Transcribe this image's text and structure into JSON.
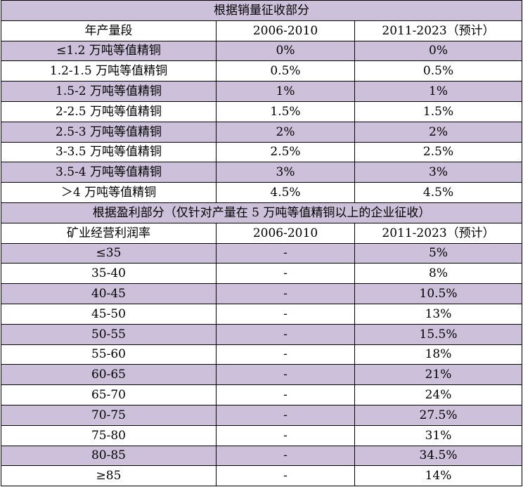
{
  "sales_section": {
    "title": "根据销量征收部分",
    "headers": [
      "年产量段",
      "2006-2010",
      "2011-2023（预计）"
    ],
    "rows": [
      [
        "≤1.2 万吨等值精铜",
        "0%",
        "0%"
      ],
      [
        "1.2-1.5 万吨等值精铜",
        "0.5%",
        "0.5%"
      ],
      [
        "1.5-2 万吨等值精铜",
        "1%",
        "1%"
      ],
      [
        "2-2.5 万吨等值精铜",
        "1.5%",
        "1.5%"
      ],
      [
        "2.5-3 万吨等值精铜",
        "2%",
        "2%"
      ],
      [
        "3-3.5 万吨等值精铜",
        "2.5%",
        "2.5%"
      ],
      [
        "3.5-4 万吨等值精铜",
        "3%",
        "3%"
      ],
      [
        "＞4 万吨等值精铜",
        "4.5%",
        "4.5%"
      ]
    ]
  },
  "profit_section": {
    "title": "根据盈利部分（仅针对产量在 5 万吨等值精铜以上的企业征收）",
    "headers": [
      "矿业经营利润率",
      "2006-2010",
      "2011-2023（预计）"
    ],
    "rows": [
      [
        "≤35",
        "-",
        "5%"
      ],
      [
        "35-40",
        "-",
        "8%"
      ],
      [
        "40-45",
        "-",
        "10.5%"
      ],
      [
        "45-50",
        "-",
        "13%"
      ],
      [
        "50-55",
        "-",
        "15.5%"
      ],
      [
        "55-60",
        "-",
        "18%"
      ],
      [
        "60-65",
        "-",
        "21%"
      ],
      [
        "65-70",
        "-",
        "24%"
      ],
      [
        "70-75",
        "-",
        "27.5%"
      ],
      [
        "75-80",
        "-",
        "31%"
      ],
      [
        "80-85",
        "-",
        "34.5%"
      ],
      [
        "≥85",
        "-",
        "14%"
      ]
    ]
  },
  "colors": {
    "band": "#ccc0da",
    "plain": "#ffffff",
    "border": "#000000"
  }
}
